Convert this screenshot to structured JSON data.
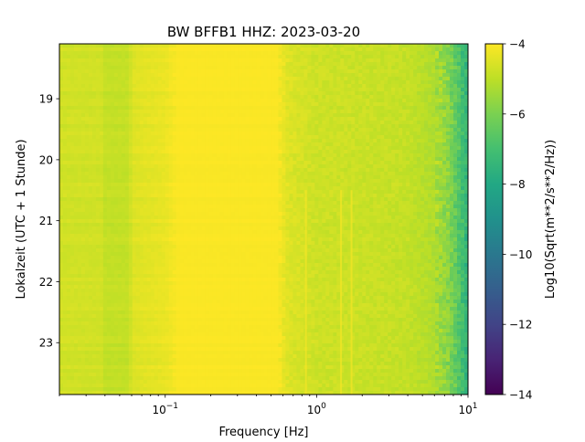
{
  "chart_data": {
    "type": "heatmap",
    "title": "BW BFFB1  HHZ: 2023-03-20",
    "xlabel": "Frequency [Hz]",
    "ylabel": "Lokalzeit (UTC + 1 Stunde)",
    "colorbar_label": "Log10(Sqrt(m**2/s**2/Hz))",
    "x_scale": "log",
    "xlim": [
      0.02,
      10
    ],
    "x_ticks": [
      {
        "value": 0.1,
        "base": "10",
        "exp": "−1"
      },
      {
        "value": 1,
        "base": "10",
        "exp": "0"
      },
      {
        "value": 10,
        "base": "10",
        "exp": "1"
      }
    ],
    "ylim": [
      18.1,
      23.85
    ],
    "y_inverted": true,
    "y_ticks": [
      "19",
      "20",
      "21",
      "22",
      "23"
    ],
    "y_tick_values": [
      19,
      20,
      21,
      22,
      23
    ],
    "colorbar": {
      "min": -14,
      "max": -4,
      "colormap": "viridis",
      "ticks": [
        "−4",
        "−6",
        "−8",
        "−10",
        "−12",
        "−14"
      ],
      "tick_values": [
        -4,
        -6,
        -8,
        -10,
        -12,
        -14
      ]
    },
    "spectral_profile": [
      {
        "f": 0.02,
        "v": -4.7
      },
      {
        "f": 0.039,
        "v": -4.7
      },
      {
        "f": 0.04,
        "v": -4.9
      },
      {
        "f": 0.058,
        "v": -4.9
      },
      {
        "f": 0.06,
        "v": -4.5
      },
      {
        "f": 0.1,
        "v": -4.3
      },
      {
        "f": 0.12,
        "v": -4.05
      },
      {
        "f": 0.55,
        "v": -4.05
      },
      {
        "f": 0.65,
        "v": -4.5
      },
      {
        "f": 1.0,
        "v": -4.75
      },
      {
        "f": 2.0,
        "v": -4.8
      },
      {
        "f": 4.0,
        "v": -4.9
      },
      {
        "f": 6.0,
        "v": -5.2
      },
      {
        "f": 7.5,
        "v": -5.8
      },
      {
        "f": 8.5,
        "v": -6.5
      },
      {
        "f": 10,
        "v": -7.6
      }
    ],
    "spectral_lines_hz": [
      0.85,
      1.45,
      1.7
    ]
  }
}
